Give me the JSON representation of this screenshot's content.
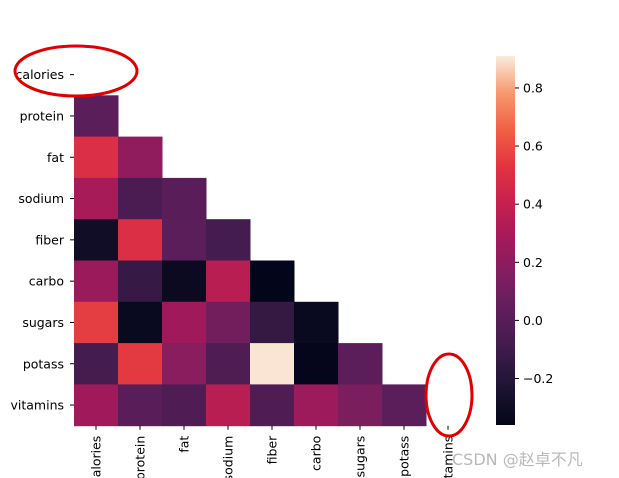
{
  "chart_data": {
    "type": "heatmap",
    "mask": "upper-triangle",
    "labels": [
      "calories",
      "protein",
      "fat",
      "sodium",
      "fiber",
      "carbo",
      "sugars",
      "potass",
      "vitamins"
    ],
    "matrix": [
      [
        null,
        null,
        null,
        null,
        null,
        null,
        null,
        null,
        null
      ],
      [
        0.02,
        null,
        null,
        null,
        null,
        null,
        null,
        null,
        null
      ],
      [
        0.5,
        0.21,
        null,
        null,
        null,
        null,
        null,
        null,
        null
      ],
      [
        0.3,
        -0.05,
        0.01,
        null,
        null,
        null,
        null,
        null,
        null
      ],
      [
        -0.29,
        0.5,
        0.02,
        -0.07,
        null,
        null,
        null,
        null,
        null
      ],
      [
        0.25,
        -0.13,
        -0.32,
        0.36,
        -0.36,
        null,
        null,
        null,
        null
      ],
      [
        0.56,
        -0.33,
        0.27,
        0.1,
        -0.14,
        -0.33,
        null,
        null,
        null
      ],
      [
        -0.07,
        0.55,
        0.19,
        -0.03,
        0.9,
        -0.35,
        0.02,
        null,
        null
      ],
      [
        0.27,
        0.01,
        -0.03,
        0.36,
        -0.03,
        0.26,
        0.13,
        0.02,
        null
      ]
    ],
    "colorbar": {
      "min": -0.36,
      "max": 0.91,
      "ticks": [
        -0.2,
        0.0,
        0.2,
        0.4,
        0.6,
        0.8
      ],
      "tick_labels": [
        "−0.2",
        "0.0",
        "0.2",
        "0.4",
        "0.6",
        "0.8"
      ]
    },
    "colormap": "rocket"
  },
  "annotations": {
    "ellipse_color": "#e00000"
  },
  "watermark": "CSDN @赵卓不凡"
}
